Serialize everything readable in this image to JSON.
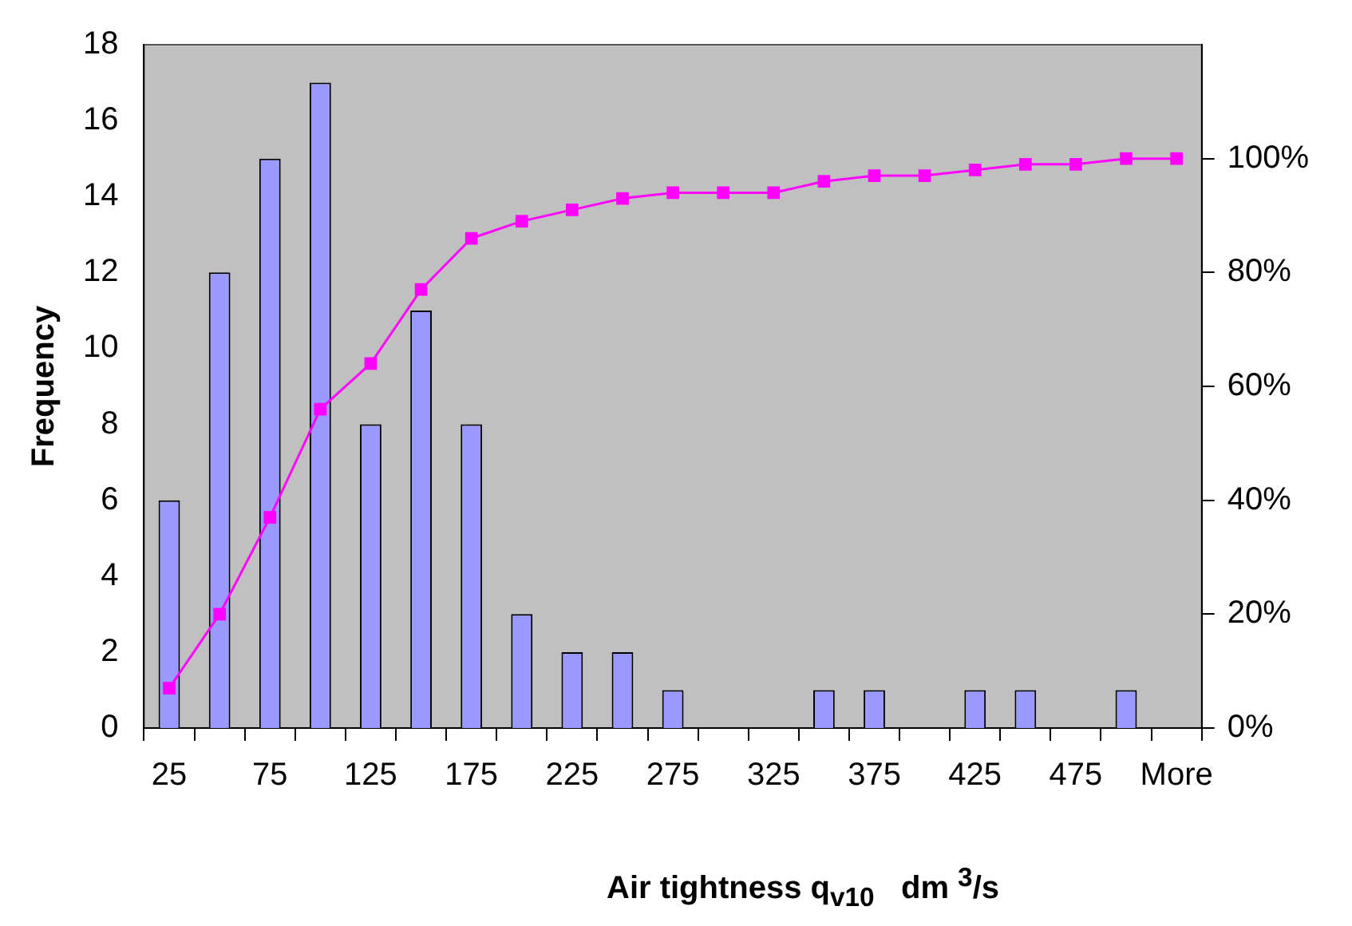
{
  "chart_data": {
    "type": "bar",
    "xlabel": "Air tightness q$_{v10}$   dm $^{3}$/s",
    "ylabel": "Frequency",
    "categories": [
      "25",
      null,
      "75",
      null,
      "125",
      null,
      "175",
      null,
      "225",
      null,
      "275",
      null,
      "325",
      null,
      "375",
      null,
      "425",
      null,
      "475",
      null,
      "More"
    ],
    "series": [
      {
        "color": "#9999ff",
        "values": [
          6,
          12,
          15,
          17,
          8,
          11,
          8,
          3,
          2,
          2,
          1,
          0,
          0,
          1,
          1,
          0,
          1,
          1,
          0,
          1,
          0
        ]
      },
      {
        "type": "line",
        "axis": "y2",
        "color": "#ff00ff",
        "marker": "square",
        "values": [
          7,
          20,
          37,
          56,
          64,
          77,
          86,
          89,
          91,
          93,
          94,
          94,
          94,
          96,
          97,
          97,
          98,
          99,
          99,
          100,
          100
        ]
      }
    ],
    "ylim": [
      0,
      18
    ],
    "yticks": [
      0,
      2,
      4,
      6,
      8,
      10,
      12,
      14,
      16,
      18
    ],
    "y2lim": [
      0,
      120
    ],
    "y2ticks": [
      {
        "value": 0,
        "label": "0%"
      },
      {
        "value": 20,
        "label": "20%"
      },
      {
        "value": 40,
        "label": "40%"
      },
      {
        "value": 60,
        "label": "60%"
      },
      {
        "value": 80,
        "label": "80%"
      },
      {
        "value": 100,
        "label": "100%"
      }
    ],
    "grid": false,
    "legend": false
  }
}
